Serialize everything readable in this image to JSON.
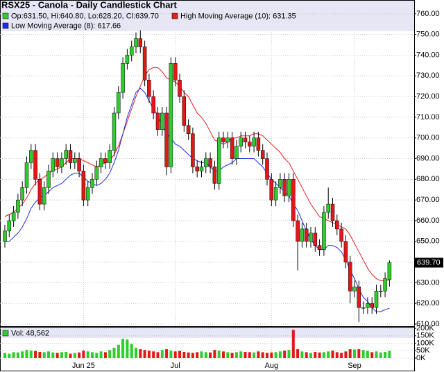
{
  "chart_data": {
    "type": "candlestick",
    "title": "RSX25 - Canola - Daily Candlestick Chart",
    "ohlc_label": "Op:631.50, Hi:640.80, Lo:628.20, Cl:639.70",
    "last_label": "639.70",
    "up_color": "#2ecc2e",
    "down_color": "#e01818",
    "grid": true,
    "categories": [
      null,
      null,
      null,
      null,
      null,
      null,
      null,
      null,
      null,
      null,
      null,
      null,
      null,
      null,
      null,
      null,
      null,
      null,
      "Jun 25",
      null,
      null,
      null,
      null,
      null,
      null,
      null,
      null,
      null,
      null,
      null,
      null,
      null,
      null,
      null,
      null,
      null,
      null,
      null,
      null,
      "Jul",
      null,
      null,
      null,
      null,
      null,
      null,
      null,
      null,
      null,
      null,
      null,
      null,
      null,
      null,
      null,
      null,
      null,
      null,
      null,
      null,
      null,
      "Aug",
      null,
      null,
      null,
      null,
      null,
      null,
      null,
      null,
      null,
      null,
      null,
      null,
      null,
      null,
      null,
      null,
      null,
      null,
      "Sep",
      null,
      null,
      null,
      null,
      null,
      null,
      null,
      null
    ],
    "open": [
      650,
      655,
      660,
      664,
      670,
      676,
      688,
      694,
      680,
      668,
      676,
      684,
      690,
      686,
      690,
      694,
      688,
      690,
      684,
      670,
      676,
      680,
      686,
      690,
      688,
      694,
      712,
      722,
      736,
      740,
      744,
      748,
      744,
      728,
      720,
      712,
      704,
      712,
      686,
      736,
      728,
      720,
      706,
      702,
      686,
      684,
      686,
      690,
      686,
      678,
      700,
      698,
      700,
      690,
      696,
      700,
      698,
      696,
      700,
      694,
      690,
      680,
      670,
      676,
      680,
      672,
      680,
      660,
      650,
      656,
      650,
      654,
      648,
      646,
      664,
      668,
      660,
      656,
      650,
      640,
      626,
      628,
      618,
      618,
      620,
      618,
      626,
      626,
      631.5
    ],
    "high": [
      658,
      663,
      667,
      673,
      679,
      691,
      697,
      697,
      683,
      679,
      687,
      693,
      693,
      693,
      697,
      697,
      693,
      693,
      687,
      679,
      683,
      689,
      693,
      693,
      697,
      715,
      725,
      739,
      743,
      747,
      751,
      752,
      747,
      731,
      723,
      715,
      715,
      715,
      739,
      739,
      731,
      723,
      709,
      705,
      689,
      689,
      693,
      693,
      689,
      703,
      703,
      703,
      703,
      699,
      703,
      703,
      701,
      703,
      703,
      697,
      693,
      683,
      679,
      683,
      683,
      683,
      683,
      663,
      659,
      659,
      657,
      657,
      651,
      667,
      676,
      671,
      663,
      659,
      653,
      643,
      631,
      631,
      621,
      623,
      623,
      629,
      629,
      635,
      640.8
    ],
    "low": [
      647,
      652,
      657,
      661,
      667,
      673,
      685,
      677,
      665,
      665,
      673,
      681,
      683,
      683,
      687,
      685,
      685,
      681,
      667,
      667,
      673,
      677,
      683,
      685,
      685,
      691,
      709,
      719,
      733,
      737,
      741,
      741,
      725,
      717,
      709,
      701,
      701,
      682,
      683,
      725,
      717,
      703,
      699,
      683,
      681,
      681,
      683,
      683,
      675,
      675,
      695,
      695,
      687,
      687,
      693,
      695,
      693,
      693,
      691,
      687,
      677,
      667,
      667,
      673,
      669,
      669,
      657,
      636,
      647,
      647,
      647,
      645,
      643,
      643,
      661,
      657,
      653,
      647,
      637,
      620,
      623,
      611,
      615,
      615,
      615,
      615,
      623,
      623,
      628.2
    ],
    "close": [
      655,
      660,
      664,
      670,
      676,
      688,
      694,
      680,
      668,
      676,
      684,
      690,
      686,
      690,
      694,
      688,
      690,
      684,
      670,
      676,
      680,
      686,
      690,
      688,
      694,
      712,
      722,
      736,
      740,
      744,
      748,
      744,
      728,
      720,
      712,
      704,
      712,
      686,
      736,
      728,
      720,
      706,
      702,
      686,
      684,
      686,
      690,
      686,
      678,
      700,
      698,
      700,
      690,
      696,
      700,
      698,
      696,
      700,
      694,
      690,
      680,
      670,
      676,
      680,
      672,
      680,
      660,
      650,
      656,
      650,
      654,
      648,
      646,
      664,
      668,
      660,
      656,
      650,
      640,
      626,
      628,
      618,
      618,
      620,
      618,
      626,
      626,
      632,
      639.7
    ],
    "ylim": [
      609,
      762.3
    ],
    "yticks": [
      {
        "value": 610,
        "label": "610.00"
      },
      {
        "value": 620,
        "label": "620.00"
      },
      {
        "value": 630,
        "label": "630.00"
      },
      {
        "value": 640,
        "label": "640.00"
      },
      {
        "value": 650,
        "label": "650.00"
      },
      {
        "value": 660,
        "label": "660.00"
      },
      {
        "value": 670,
        "label": "670.00"
      },
      {
        "value": 680,
        "label": "680.00"
      },
      {
        "value": 690,
        "label": "690.00"
      },
      {
        "value": 700,
        "label": "700.00"
      },
      {
        "value": 710,
        "label": "710.00"
      },
      {
        "value": 720,
        "label": "720.00"
      },
      {
        "value": 730,
        "label": "730.00"
      },
      {
        "value": 740,
        "label": "740.00"
      },
      {
        "value": 750,
        "label": "750.00"
      },
      {
        "value": 760,
        "label": "760.00"
      }
    ],
    "moving_averages": [
      {
        "name": "High Moving Average (10): 631.35",
        "color": "#e81c1c",
        "values": [
          662,
          663,
          664,
          666,
          668,
          671,
          675,
          678,
          680,
          681,
          683,
          684,
          685,
          686,
          688,
          690,
          690,
          690,
          689,
          688,
          687,
          686,
          687,
          688,
          689,
          692,
          696,
          702,
          708,
          714,
          720,
          725,
          730,
          733,
          734,
          734,
          732,
          729,
          728,
          727,
          725,
          722,
          720,
          716,
          712,
          710,
          707,
          703,
          699,
          698,
          697,
          698,
          700,
          700,
          701,
          701,
          701,
          702,
          702,
          701,
          699,
          697,
          695,
          693,
          690,
          688,
          684,
          680,
          676,
          672,
          668,
          665,
          662,
          661,
          660,
          659,
          658,
          657,
          656,
          653,
          649,
          645,
          641,
          637,
          634,
          632,
          631,
          631,
          631.35
        ]
      },
      {
        "name": "Low Moving Average (8): 617.66",
        "color": "#1c2ce8",
        "values": [
          650,
          650,
          652,
          654,
          657,
          661,
          666,
          669,
          671,
          672,
          674,
          676,
          677,
          678,
          680,
          682,
          683,
          683,
          681,
          679,
          678,
          677,
          678,
          680,
          683,
          688,
          694,
          702,
          710,
          716,
          722,
          724,
          722,
          718,
          714,
          711,
          706,
          702,
          700,
          697,
          696,
          694,
          692,
          690,
          689,
          688,
          688,
          686,
          684,
          684,
          686,
          687,
          688,
          690,
          690,
          690,
          690,
          690,
          688,
          686,
          683,
          680,
          678,
          676,
          674,
          672,
          668,
          665,
          660,
          655,
          651,
          648,
          646,
          646,
          648,
          648,
          647,
          645,
          641,
          636,
          632,
          627,
          623,
          621,
          618,
          616,
          616,
          617,
          617.66
        ]
      }
    ],
    "volume": {
      "name": "Vol: 48,562",
      "values": [
        35000,
        30000,
        40000,
        38000,
        45000,
        55000,
        50000,
        48000,
        42000,
        40000,
        45000,
        38000,
        35000,
        40000,
        42000,
        30000,
        35000,
        38000,
        50000,
        45000,
        40000,
        35000,
        45000,
        40000,
        55000,
        70000,
        90000,
        130000,
        125000,
        95000,
        70000,
        60000,
        55000,
        50000,
        45000,
        40000,
        55000,
        60000,
        50000,
        45000,
        48000,
        42000,
        38000,
        35000,
        40000,
        45000,
        40000,
        38000,
        55000,
        50000,
        45000,
        40000,
        35000,
        40000,
        45000,
        42000,
        40000,
        38000,
        45000,
        40000,
        35000,
        38000,
        40000,
        45000,
        50000,
        55000,
        190000,
        60000,
        45000,
        40000,
        35000,
        42000,
        38000,
        40000,
        45000,
        50000,
        40000,
        35000,
        45000,
        60000,
        58000,
        60000,
        55000,
        48000,
        40000,
        45000,
        38000,
        42000,
        48562
      ],
      "ylim": [
        0,
        205000
      ],
      "yticks": [
        {
          "value": 0,
          "label": "0K"
        },
        {
          "value": 50000,
          "label": "50K"
        },
        {
          "value": 100000,
          "label": "100K"
        },
        {
          "value": 150000,
          "label": "150K"
        },
        {
          "value": 200000,
          "label": "200K"
        }
      ]
    }
  }
}
